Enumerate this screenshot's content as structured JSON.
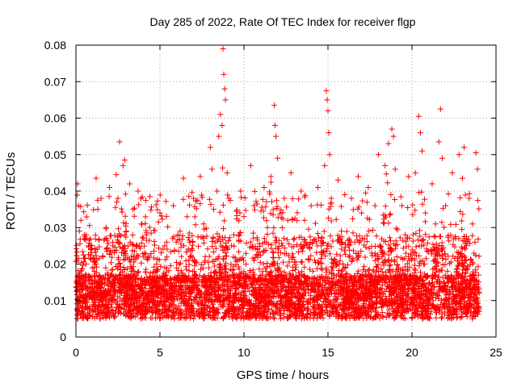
{
  "chart_data": {
    "type": "scatter",
    "title": "Day 285 of 2022, Rate Of TEC Index for receiver flgp",
    "xlabel": "GPS time / hours",
    "ylabel": "ROTI / TECUs",
    "xlim": [
      0,
      25
    ],
    "ylim": [
      0,
      0.08
    ],
    "x_ticks": [
      0,
      5,
      10,
      15,
      20,
      25
    ],
    "x_tick_labels": [
      "0",
      "5",
      "10",
      "15",
      "20",
      "25"
    ],
    "y_ticks": [
      0,
      0.01,
      0.02,
      0.03,
      0.04,
      0.05,
      0.06,
      0.07,
      0.08
    ],
    "y_tick_labels": [
      "0",
      "0.01",
      "0.02",
      "0.03",
      "0.04",
      "0.05",
      "0.06",
      "0.07",
      "0.08"
    ],
    "grid": true,
    "marker": "plus",
    "series_color": "#ff0000",
    "series": [
      {
        "name": "ROTI",
        "points": [
          [
            0.05,
            0.0125
          ],
          [
            0.1,
            0.042
          ],
          [
            0.15,
            0.036
          ],
          [
            0.2,
            0.0095
          ],
          [
            0.25,
            0.011
          ],
          [
            0.3,
            0.032
          ],
          [
            0.4,
            0.008
          ],
          [
            0.5,
            0.015
          ],
          [
            0.6,
            0.02
          ],
          [
            0.7,
            0.012
          ],
          [
            0.8,
            0.0075
          ],
          [
            0.9,
            0.024
          ],
          [
            1.0,
            0.0105
          ],
          [
            1.1,
            0.018
          ],
          [
            1.2,
            0.0435
          ],
          [
            1.3,
            0.035
          ],
          [
            1.4,
            0.0095
          ],
          [
            1.5,
            0.038
          ],
          [
            1.6,
            0.022
          ],
          [
            1.7,
            0.0115
          ],
          [
            1.8,
            0.03
          ],
          [
            1.9,
            0.016
          ],
          [
            2.0,
            0.041
          ],
          [
            2.1,
            0.009
          ],
          [
            2.2,
            0.025
          ],
          [
            2.3,
            0.013
          ],
          [
            2.4,
            0.0445
          ],
          [
            2.5,
            0.038
          ],
          [
            2.6,
            0.0535
          ],
          [
            2.7,
            0.012
          ],
          [
            2.8,
            0.047
          ],
          [
            2.9,
            0.0485
          ],
          [
            3.0,
            0.029
          ],
          [
            3.1,
            0.0105
          ],
          [
            3.2,
            0.042
          ],
          [
            3.3,
            0.019
          ],
          [
            3.4,
            0.035
          ],
          [
            3.5,
            0.0085
          ],
          [
            3.6,
            0.025
          ],
          [
            3.7,
            0.04
          ],
          [
            3.8,
            0.014
          ],
          [
            3.9,
            0.031
          ],
          [
            4.0,
            0.01
          ],
          [
            4.2,
            0.028
          ],
          [
            4.4,
            0.0385
          ],
          [
            4.6,
            0.012
          ],
          [
            4.8,
            0.02
          ],
          [
            5.0,
            0.034
          ],
          [
            5.2,
            0.009
          ],
          [
            5.4,
            0.026
          ],
          [
            5.6,
            0.016
          ],
          [
            5.8,
            0.036
          ],
          [
            6.0,
            0.011
          ],
          [
            6.2,
            0.029
          ],
          [
            6.4,
            0.0435
          ],
          [
            6.6,
            0.0065
          ],
          [
            6.8,
            0.022
          ],
          [
            7.0,
            0.038
          ],
          [
            7.2,
            0.014
          ],
          [
            7.4,
            0.044
          ],
          [
            7.6,
            0.031
          ],
          [
            7.8,
            0.012
          ],
          [
            8.0,
            0.052
          ],
          [
            8.1,
            0.046
          ],
          [
            8.2,
            0.035
          ],
          [
            8.3,
            0.011
          ],
          [
            8.4,
            0.04
          ],
          [
            8.5,
            0.055
          ],
          [
            8.6,
            0.061
          ],
          [
            8.7,
            0.058
          ],
          [
            8.75,
            0.079
          ],
          [
            8.8,
            0.072
          ],
          [
            8.85,
            0.068
          ],
          [
            8.9,
            0.065
          ],
          [
            9.0,
            0.045
          ],
          [
            9.1,
            0.038
          ],
          [
            9.2,
            0.012
          ],
          [
            9.4,
            0.028
          ],
          [
            9.6,
            0.021
          ],
          [
            9.8,
            0.04
          ],
          [
            10.0,
            0.033
          ],
          [
            10.2,
            0.009
          ],
          [
            10.4,
            0.047
          ],
          [
            10.6,
            0.036
          ],
          [
            10.8,
            0.024
          ],
          [
            11.0,
            0.013
          ],
          [
            11.2,
            0.041
          ],
          [
            11.4,
            0.03
          ],
          [
            11.6,
            0.044
          ],
          [
            11.8,
            0.0635
          ],
          [
            11.85,
            0.058
          ],
          [
            11.9,
            0.055
          ],
          [
            12.0,
            0.049
          ],
          [
            12.2,
            0.017
          ],
          [
            12.4,
            0.038
          ],
          [
            12.6,
            0.011
          ],
          [
            12.8,
            0.045
          ],
          [
            13.0,
            0.027
          ],
          [
            13.2,
            0.012
          ],
          [
            13.4,
            0.04
          ],
          [
            13.6,
            0.032
          ],
          [
            13.8,
            0.009
          ],
          [
            14.0,
            0.036
          ],
          [
            14.2,
            0.015
          ],
          [
            14.4,
            0.041
          ],
          [
            14.6,
            0.025
          ],
          [
            14.8,
            0.047
          ],
          [
            14.9,
            0.0675
          ],
          [
            14.95,
            0.065
          ],
          [
            15.0,
            0.062
          ],
          [
            15.05,
            0.056
          ],
          [
            15.1,
            0.05
          ],
          [
            15.2,
            0.038
          ],
          [
            15.4,
            0.012
          ],
          [
            15.6,
            0.043
          ],
          [
            15.8,
            0.029
          ],
          [
            16.0,
            0.039
          ],
          [
            16.2,
            0.014
          ],
          [
            16.4,
            0.038
          ],
          [
            16.6,
            0.026
          ],
          [
            16.8,
            0.044
          ],
          [
            17.0,
            0.034
          ],
          [
            17.2,
            0.011
          ],
          [
            17.4,
            0.041
          ],
          [
            17.6,
            0.023
          ],
          [
            17.8,
            0.036
          ],
          [
            18.0,
            0.05
          ],
          [
            18.2,
            0.016
          ],
          [
            18.4,
            0.047
          ],
          [
            18.6,
            0.053
          ],
          [
            18.8,
            0.057
          ],
          [
            18.9,
            0.055
          ],
          [
            19.0,
            0.046
          ],
          [
            19.2,
            0.019
          ],
          [
            19.4,
            0.036
          ],
          [
            19.6,
            0.028
          ],
          [
            19.8,
            0.044
          ],
          [
            20.0,
            0.012
          ],
          [
            20.2,
            0.045
          ],
          [
            20.4,
            0.0605
          ],
          [
            20.5,
            0.056
          ],
          [
            20.6,
            0.051
          ],
          [
            20.8,
            0.034
          ],
          [
            21.0,
            0.013
          ],
          [
            21.2,
            0.042
          ],
          [
            21.4,
            0.031
          ],
          [
            21.6,
            0.0535
          ],
          [
            21.7,
            0.0625
          ],
          [
            21.8,
            0.049
          ],
          [
            22.0,
            0.036
          ],
          [
            22.2,
            0.016
          ],
          [
            22.4,
            0.045
          ],
          [
            22.6,
            0.027
          ],
          [
            22.8,
            0.05
          ],
          [
            23.0,
            0.0435
          ],
          [
            23.1,
            0.052
          ],
          [
            23.2,
            0.021
          ],
          [
            23.4,
            0.038
          ],
          [
            23.6,
            0.031
          ],
          [
            23.8,
            0.0505
          ],
          [
            23.9,
            0.046
          ],
          [
            24.0,
            0.012
          ]
        ]
      }
    ]
  }
}
